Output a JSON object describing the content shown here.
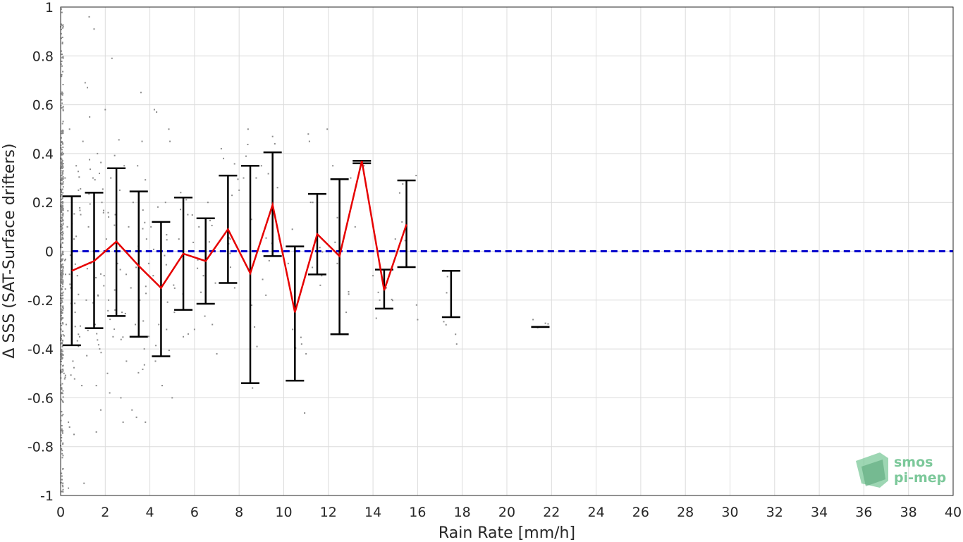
{
  "chart_data": {
    "type": "scatter",
    "title": "",
    "xlabel": "Rain Rate [mm/h]",
    "ylabel": "Δ SSS (SAT-Surface drifters)",
    "xlim": [
      0,
      40
    ],
    "ylim": [
      -1,
      1
    ],
    "x_ticks": [
      0,
      2,
      4,
      6,
      8,
      10,
      12,
      14,
      16,
      18,
      20,
      22,
      24,
      26,
      28,
      30,
      32,
      34,
      36,
      38,
      40
    ],
    "y_ticks": [
      -1,
      -0.8,
      -0.6,
      -0.4,
      -0.2,
      0,
      0.2,
      0.4,
      0.6,
      0.8,
      1
    ],
    "y_tick_labels": [
      "-1",
      "-0.8",
      "-0.6",
      "-0.4",
      "-0.2",
      "0",
      "0.2",
      "0.4",
      "0.6",
      "0.8",
      "1"
    ],
    "grid": true,
    "colors": {
      "scatter": "#8c8c8c",
      "mean_line": "#e60000",
      "error_bars": "#000000",
      "zero_line": "#0000cc",
      "grid": "#dcdcdc",
      "logo": "#7cc89a"
    },
    "reference_line": {
      "y": 0,
      "style": "dashed"
    },
    "mean_series": {
      "x": [
        0.5,
        1.5,
        2.5,
        3.5,
        4.5,
        5.5,
        6.5,
        7.5,
        8.5,
        9.5,
        10.5,
        11.5,
        12.5,
        13.5,
        14.5,
        15.5
      ],
      "y": [
        -0.08,
        -0.04,
        0.04,
        -0.06,
        -0.15,
        -0.01,
        -0.04,
        0.09,
        -0.09,
        0.19,
        -0.25,
        0.07,
        -0.02,
        0.37,
        -0.16,
        0.11
      ]
    },
    "error_bars": [
      {
        "x": 0.5,
        "low": -0.385,
        "high": 0.225
      },
      {
        "x": 1.5,
        "low": -0.315,
        "high": 0.24
      },
      {
        "x": 2.5,
        "low": -0.265,
        "high": 0.34
      },
      {
        "x": 3.5,
        "low": -0.35,
        "high": 0.245
      },
      {
        "x": 4.5,
        "low": -0.43,
        "high": 0.12
      },
      {
        "x": 5.5,
        "low": -0.24,
        "high": 0.22
      },
      {
        "x": 6.5,
        "low": -0.215,
        "high": 0.135
      },
      {
        "x": 7.5,
        "low": -0.13,
        "high": 0.31
      },
      {
        "x": 8.5,
        "low": -0.54,
        "high": 0.35
      },
      {
        "x": 9.5,
        "low": -0.02,
        "high": 0.405
      },
      {
        "x": 10.5,
        "low": -0.53,
        "high": 0.02
      },
      {
        "x": 11.5,
        "low": -0.095,
        "high": 0.235
      },
      {
        "x": 12.5,
        "low": -0.34,
        "high": 0.295
      },
      {
        "x": 13.5,
        "low": 0.36,
        "high": 0.37
      },
      {
        "x": 14.5,
        "low": -0.235,
        "high": -0.075
      },
      {
        "x": 15.5,
        "low": -0.065,
        "high": 0.29
      },
      {
        "x": 17.5,
        "low": -0.27,
        "high": -0.08
      },
      {
        "x": 21.5,
        "low": -0.31,
        "high": -0.31
      }
    ],
    "scatter_points": [
      [
        0.05,
        0.62
      ],
      [
        0.08,
        0.85
      ],
      [
        0.1,
        -0.95
      ],
      [
        0.12,
        0.4
      ],
      [
        0.15,
        -0.5
      ],
      [
        0.2,
        0.3
      ],
      [
        0.25,
        -0.3
      ],
      [
        0.3,
        0.1
      ],
      [
        0.35,
        -0.7
      ],
      [
        0.4,
        0.5
      ],
      [
        0.45,
        -0.15
      ],
      [
        0.5,
        0.2
      ],
      [
        0.55,
        -0.45
      ],
      [
        0.6,
        0.05
      ],
      [
        0.65,
        -0.25
      ],
      [
        0.7,
        0.35
      ],
      [
        0.75,
        -0.1
      ],
      [
        0.8,
        0.25
      ],
      [
        0.85,
        -0.35
      ],
      [
        0.9,
        0.15
      ],
      [
        0.95,
        -0.55
      ],
      [
        1.0,
        0.45
      ],
      [
        0.35,
        -0.97
      ],
      [
        0.4,
        -0.72
      ],
      [
        0.6,
        -0.75
      ],
      [
        1.1,
        0.69
      ],
      [
        1.2,
        0.67
      ],
      [
        1.05,
        -0.95
      ],
      [
        1.15,
        -0.2
      ],
      [
        1.25,
        0.1
      ],
      [
        1.35,
        -0.05
      ],
      [
        1.45,
        0.3
      ],
      [
        1.55,
        -0.3
      ],
      [
        1.65,
        0.4
      ],
      [
        1.75,
        -0.4
      ],
      [
        1.85,
        0.2
      ],
      [
        1.95,
        -0.1
      ],
      [
        1.3,
        0.55
      ],
      [
        1.6,
        -0.55
      ],
      [
        1.8,
        -0.65
      ],
      [
        1.28,
        0.96
      ],
      [
        1.5,
        0.91
      ],
      [
        2.05,
        0.05
      ],
      [
        2.15,
        -0.2
      ],
      [
        2.25,
        0.3
      ],
      [
        2.35,
        -0.35
      ],
      [
        2.45,
        0.15
      ],
      [
        2.55,
        -0.05
      ],
      [
        2.65,
        0.25
      ],
      [
        2.75,
        -0.25
      ],
      [
        2.85,
        0.35
      ],
      [
        2.95,
        -0.45
      ],
      [
        2.0,
        0.58
      ],
      [
        2.2,
        -0.58
      ],
      [
        2.3,
        0.79
      ],
      [
        1.6,
        -0.74
      ],
      [
        2.1,
        -0.5
      ],
      [
        3.05,
        0.1
      ],
      [
        3.15,
        -0.15
      ],
      [
        3.25,
        0.2
      ],
      [
        3.35,
        -0.3
      ],
      [
        3.45,
        0.35
      ],
      [
        3.55,
        -0.2
      ],
      [
        3.65,
        0.45
      ],
      [
        3.75,
        -0.4
      ],
      [
        3.85,
        0.05
      ],
      [
        3.95,
        -0.05
      ],
      [
        3.2,
        -0.65
      ],
      [
        3.4,
        -0.68
      ],
      [
        3.6,
        0.65
      ],
      [
        3.8,
        -0.7
      ],
      [
        2.7,
        -0.6
      ],
      [
        2.8,
        -0.7
      ],
      [
        4.05,
        0.1
      ],
      [
        4.15,
        -0.1
      ],
      [
        4.25,
        -0.45
      ],
      [
        4.4,
        -0.3
      ],
      [
        4.55,
        -0.55
      ],
      [
        4.7,
        0.2
      ],
      [
        4.85,
        0.5
      ],
      [
        4.9,
        0.45
      ],
      [
        5.0,
        -0.6
      ],
      [
        5.1,
        -0.25
      ],
      [
        4.2,
        0.58
      ],
      [
        4.3,
        0.57
      ],
      [
        5.3,
        0.05
      ],
      [
        5.5,
        -0.35
      ],
      [
        5.7,
        0.15
      ],
      [
        6.0,
        -0.32
      ],
      [
        6.2,
        0.1
      ],
      [
        6.4,
        -0.1
      ],
      [
        6.6,
        0.2
      ],
      [
        6.8,
        -0.3
      ],
      [
        7.0,
        -0.42
      ],
      [
        7.2,
        0.42
      ],
      [
        7.3,
        0.38
      ],
      [
        7.6,
        0.05
      ],
      [
        7.8,
        -0.15
      ],
      [
        8.0,
        0.25
      ],
      [
        8.2,
        0.3
      ],
      [
        8.4,
        0.5
      ],
      [
        8.6,
        -0.56
      ],
      [
        8.8,
        -0.39
      ],
      [
        9.0,
        0.35
      ],
      [
        9.2,
        -0.18
      ],
      [
        9.5,
        0.47
      ],
      [
        9.6,
        0.44
      ],
      [
        9.8,
        0.05
      ],
      [
        10.2,
        -0.05
      ],
      [
        10.4,
        -0.32
      ],
      [
        10.6,
        -0.22
      ],
      [
        10.8,
        -0.38
      ],
      [
        11.0,
        -0.42
      ],
      [
        11.1,
        0.48
      ],
      [
        11.15,
        0.45
      ],
      [
        11.3,
        0.2
      ],
      [
        11.7,
        -0.1
      ],
      [
        11.95,
        0.5
      ],
      [
        12.2,
        0.35
      ],
      [
        12.4,
        -0.05
      ],
      [
        12.8,
        -0.25
      ],
      [
        13.0,
        0.3
      ],
      [
        13.2,
        0.1
      ],
      [
        13.6,
        0.35
      ],
      [
        14.0,
        -0.1
      ],
      [
        14.3,
        -0.2
      ],
      [
        14.6,
        -0.15
      ],
      [
        15.0,
        0.05
      ],
      [
        15.3,
        0.12
      ],
      [
        15.95,
        -0.22
      ],
      [
        16.0,
        -0.28
      ],
      [
        17.3,
        -0.17
      ],
      [
        17.7,
        -0.34
      ],
      [
        17.75,
        -0.38
      ]
    ],
    "logo": {
      "line1": "smos",
      "line2": "pi-mep"
    }
  }
}
